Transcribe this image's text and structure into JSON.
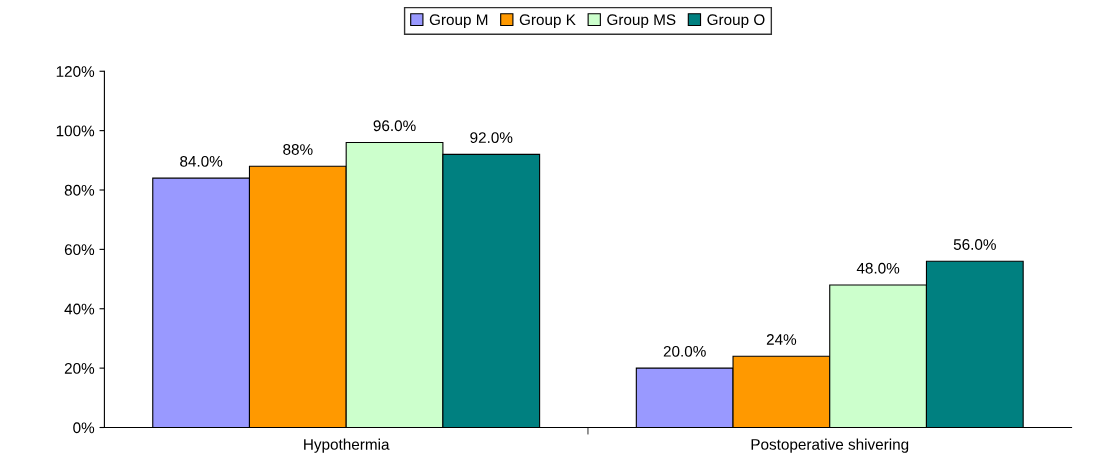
{
  "chart_data": {
    "type": "bar",
    "categories": [
      "Hypothermia",
      "Postoperative shivering"
    ],
    "series": [
      {
        "name": "Group M",
        "color": "#9999ff",
        "values": [
          84,
          20
        ],
        "value_labels": [
          "84.0%",
          "20.0%"
        ]
      },
      {
        "name": "Group K",
        "color": "#ff9900",
        "values": [
          88,
          24
        ],
        "value_labels": [
          "88%",
          "24%"
        ]
      },
      {
        "name": "Group MS",
        "color": "#ccffcc",
        "values": [
          96,
          48
        ],
        "value_labels": [
          "96.0%",
          "48.0%"
        ]
      },
      {
        "name": "Group O",
        "color": "#008080",
        "values": [
          92,
          56
        ],
        "value_labels": [
          "92.0%",
          "56.0%"
        ]
      }
    ],
    "ylim": [
      0,
      120
    ],
    "yticks": [
      {
        "value": 0,
        "label": "0%"
      },
      {
        "value": 20,
        "label": "20%"
      },
      {
        "value": 40,
        "label": "40%"
      },
      {
        "value": 60,
        "label": "60%"
      },
      {
        "value": 80,
        "label": "80%"
      },
      {
        "value": 100,
        "label": "100%"
      },
      {
        "value": 120,
        "label": "120%"
      }
    ],
    "grid": false,
    "legend": "top"
  }
}
